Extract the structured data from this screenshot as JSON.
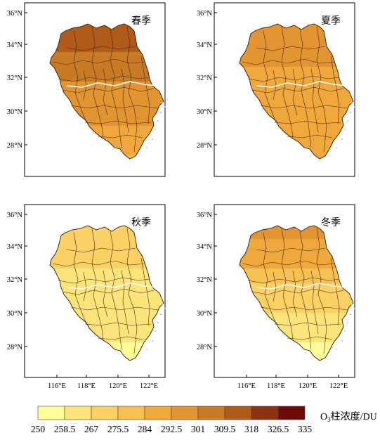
{
  "panels": [
    {
      "id": "spring",
      "season": "春季",
      "level": 0.78
    },
    {
      "id": "summer",
      "season": "夏季",
      "level": 0.52
    },
    {
      "id": "autumn",
      "season": "秋季",
      "level": 0.24
    },
    {
      "id": "winter",
      "season": "冬季",
      "level": 0.15
    }
  ],
  "lat_ticks": [
    "36°N",
    "34°N",
    "32°N",
    "30°N",
    "28°N"
  ],
  "lon_ticks": [
    "116°E",
    "118°E",
    "120°E",
    "122°E"
  ],
  "colorbar": {
    "title_prefix": "O",
    "title_sub": "3",
    "title_suffix": "柱浓度/DU",
    "ticks": [
      "250",
      "258.5",
      "267",
      "275.5",
      "284",
      "292.5",
      "301",
      "309.5",
      "318",
      "326.5",
      "335"
    ],
    "colors": [
      "#ffff99",
      "#fde47a",
      "#fbd065",
      "#f7c053",
      "#f0a73b",
      "#e29431",
      "#c97a24",
      "#b05b18",
      "#8c3210",
      "#6e0b0b"
    ]
  }
}
